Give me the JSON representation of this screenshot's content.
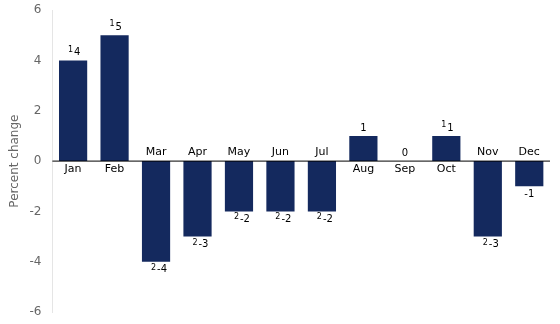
{
  "chart_data": {
    "type": "bar",
    "categories": [
      "Jan",
      "Feb",
      "Mar",
      "Apr",
      "May",
      "Jun",
      "Jul",
      "Aug",
      "Sep",
      "Oct",
      "Nov",
      "Dec"
    ],
    "values": [
      4,
      5,
      -4,
      -3,
      -2,
      -2,
      -2,
      1,
      0,
      1,
      -3,
      -1
    ],
    "color": "#14295e",
    "ylabel": "Percent change",
    "ylim": [
      -6,
      6
    ],
    "yticks": [
      -6,
      -4,
      -2,
      0,
      2,
      4,
      6
    ],
    "grid": false,
    "data_labels": true,
    "tick_labels": "y",
    "annotations": [
      {
        "category": "Jan",
        "text": "1"
      },
      {
        "category": "Feb",
        "text": "1"
      },
      {
        "category": "Mar",
        "text": "2"
      },
      {
        "category": "Apr",
        "text": "2"
      },
      {
        "category": "May",
        "text": "2"
      },
      {
        "category": "Jun",
        "text": "2"
      },
      {
        "category": "Jul",
        "text": "2"
      },
      {
        "category": "Oct",
        "text": "1"
      },
      {
        "category": "Nov",
        "text": "2"
      }
    ]
  }
}
